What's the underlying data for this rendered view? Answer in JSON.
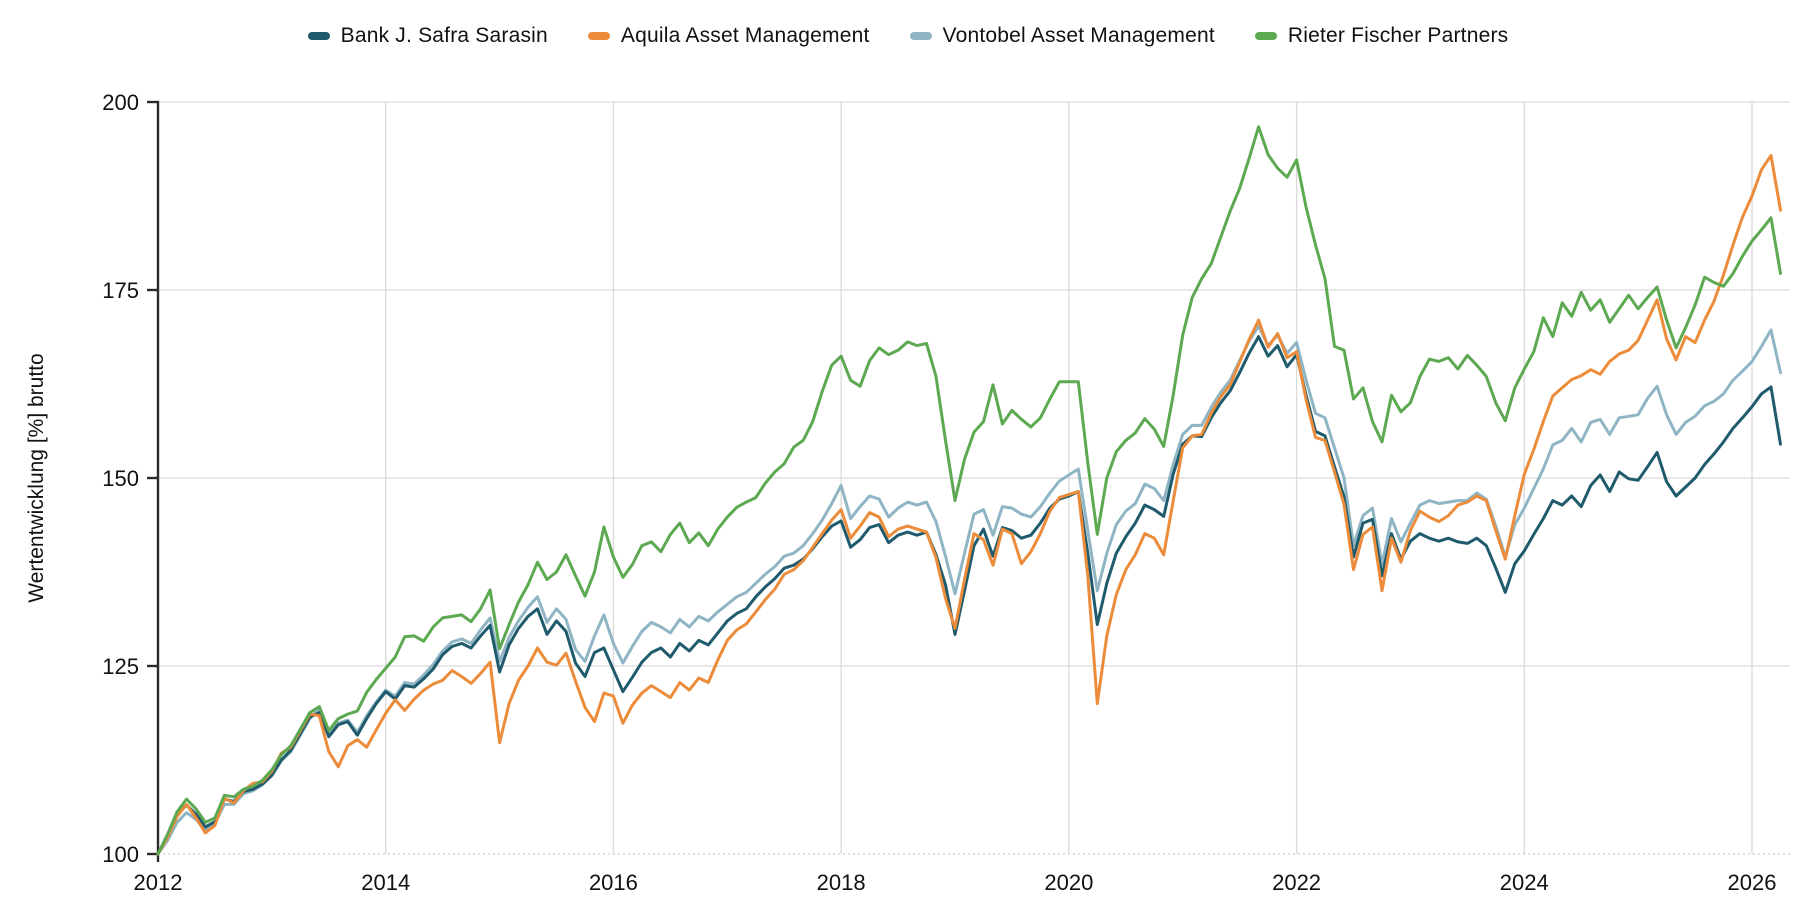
{
  "chart_data": {
    "type": "line",
    "title": "",
    "xlabel": "",
    "ylabel": "Wertentwicklung [%] brutto",
    "x_start_year": 2012,
    "x_points_per_year": 12,
    "x_end_year": 2026.25,
    "ylim": [
      100,
      200
    ],
    "xlim": [
      2012,
      2026.33
    ],
    "y_ticks": [
      100,
      125,
      150,
      175,
      200
    ],
    "x_ticks": [
      2012,
      2014,
      2016,
      2018,
      2020,
      2022,
      2024,
      2026
    ],
    "grid": true,
    "legend_position": "top",
    "colors": {
      "grid": "#d9d9d9",
      "baseline": "#c9c9c9",
      "axis": "#2b2b2b",
      "text": "#111111"
    },
    "series": [
      {
        "name": "Bank J. Safra Sarasin",
        "color": "#1f5b6c",
        "values": [
          100,
          102.5,
          105.3,
          106.5,
          105.3,
          103.6,
          104.3,
          107.3,
          107.0,
          108.3,
          108.6,
          109.3,
          110.5,
          112.5,
          113.8,
          116.0,
          118.2,
          118.8,
          115.6,
          117.2,
          117.6,
          115.8,
          118.0,
          120.0,
          121.6,
          120.6,
          122.4,
          122.2,
          123.3,
          124.6,
          126.5,
          127.6,
          128.0,
          127.4,
          129.0,
          130.4,
          124.2,
          127.8,
          130.0,
          131.6,
          132.6,
          129.2,
          131.0,
          129.6,
          125.4,
          123.6,
          126.8,
          127.4,
          124.5,
          121.6,
          123.5,
          125.5,
          126.8,
          127.4,
          126.2,
          128.0,
          127.0,
          128.4,
          127.8,
          129.4,
          131.0,
          132.0,
          132.6,
          134.2,
          135.5,
          136.6,
          138.0,
          138.4,
          139.2,
          140.6,
          142.2,
          143.6,
          144.3,
          140.8,
          141.8,
          143.4,
          143.8,
          141.4,
          142.4,
          142.8,
          142.4,
          142.8,
          139.8,
          135.8,
          129.2,
          135.0,
          141.0,
          143.2,
          139.6,
          143.4,
          143.0,
          142.0,
          142.4,
          144.0,
          146.0,
          147.2,
          147.6,
          148.2,
          140.0,
          130.5,
          136.0,
          140.0,
          142.2,
          144.0,
          146.4,
          145.8,
          144.9,
          150.5,
          154.5,
          155.6,
          155.5,
          158.0,
          160.0,
          161.6,
          164.0,
          166.6,
          168.8,
          166.2,
          167.6,
          164.8,
          166.4,
          161.0,
          156.2,
          155.6,
          151.5,
          147.5,
          139.5,
          144.0,
          144.5,
          137.0,
          142.6,
          139.2,
          141.6,
          142.6,
          142.0,
          141.6,
          142.0,
          141.5,
          141.3,
          142.0,
          141.0,
          138.0,
          134.8,
          138.6,
          140.3,
          142.5,
          144.6,
          147.0,
          146.4,
          147.6,
          146.2,
          149.0,
          150.4,
          148.2,
          150.8,
          149.9,
          149.7,
          151.5,
          153.4,
          149.5,
          147.6,
          148.8,
          150.0,
          151.8,
          153.2,
          154.8,
          156.6,
          158.0,
          159.5,
          161.2,
          162.1,
          154.5
        ]
      },
      {
        "name": "Aquila Asset Management",
        "color": "#ec8c3b",
        "values": [
          100,
          102.2,
          105.0,
          106.6,
          104.8,
          102.8,
          103.8,
          107.4,
          106.8,
          108.4,
          109.4,
          109.6,
          111.0,
          113.4,
          114.2,
          116.4,
          118.6,
          118.4,
          113.6,
          111.6,
          114.4,
          115.2,
          114.2,
          116.5,
          118.7,
          120.5,
          119.1,
          120.6,
          121.8,
          122.6,
          123.1,
          124.4,
          123.6,
          122.7,
          124.0,
          125.5,
          114.8,
          120.0,
          123.1,
          125.0,
          127.4,
          125.5,
          125.1,
          126.7,
          123.0,
          119.5,
          117.6,
          121.4,
          121.0,
          117.4,
          119.8,
          121.4,
          122.4,
          121.6,
          120.8,
          122.8,
          121.8,
          123.4,
          122.8,
          125.8,
          128.4,
          129.8,
          130.6,
          132.2,
          133.8,
          135.2,
          137.2,
          137.8,
          139.0,
          140.8,
          142.6,
          144.4,
          145.8,
          142.0,
          143.6,
          145.4,
          144.8,
          142.2,
          143.2,
          143.6,
          143.2,
          142.8,
          139.4,
          134.0,
          130.0,
          136.5,
          142.6,
          141.8,
          138.4,
          143.2,
          142.6,
          138.6,
          140.2,
          142.6,
          145.6,
          147.4,
          147.8,
          148.2,
          137.0,
          120.0,
          129.0,
          134.5,
          137.8,
          139.8,
          142.6,
          142.0,
          139.8,
          147.0,
          154.0,
          155.6,
          155.8,
          158.6,
          160.8,
          162.4,
          165.4,
          168.4,
          171.0,
          167.4,
          169.2,
          166.0,
          166.8,
          160.4,
          155.4,
          155.0,
          150.8,
          146.5,
          137.8,
          142.5,
          143.5,
          135.0,
          142.0,
          138.8,
          143.0,
          145.6,
          144.8,
          144.2,
          145.0,
          146.4,
          146.8,
          147.6,
          147.0,
          143.0,
          139.2,
          145.0,
          150.5,
          153.8,
          157.5,
          160.9,
          162.0,
          163.1,
          163.6,
          164.4,
          163.8,
          165.5,
          166.5,
          167.0,
          168.3,
          171.0,
          173.7,
          168.5,
          165.7,
          168.8,
          168.0,
          171.0,
          173.5,
          177.0,
          181.0,
          184.7,
          187.5,
          191.0,
          192.9,
          185.6
        ]
      },
      {
        "name": "Vontobel Asset Management",
        "color": "#8fb5c5",
        "values": [
          100,
          101.8,
          104.2,
          105.5,
          104.6,
          103.2,
          104.0,
          106.6,
          106.6,
          108.0,
          108.4,
          109.2,
          110.4,
          112.4,
          113.6,
          115.8,
          118.0,
          119.4,
          116.0,
          117.4,
          117.8,
          116.2,
          118.4,
          120.2,
          121.8,
          121.0,
          122.8,
          122.6,
          123.8,
          125.2,
          127.0,
          128.2,
          128.6,
          128.0,
          129.8,
          131.4,
          125.6,
          128.8,
          131.0,
          132.8,
          134.2,
          130.8,
          132.6,
          131.2,
          127.2,
          125.6,
          129.0,
          131.8,
          128.0,
          125.4,
          127.6,
          129.6,
          130.8,
          130.2,
          129.4,
          131.2,
          130.2,
          131.6,
          131.0,
          132.2,
          133.2,
          134.2,
          134.8,
          136.0,
          137.2,
          138.2,
          139.6,
          140.0,
          141.0,
          142.6,
          144.4,
          146.6,
          149.0,
          144.6,
          146.2,
          147.6,
          147.2,
          144.8,
          146.0,
          146.8,
          146.4,
          146.8,
          144.2,
          139.6,
          134.6,
          140.0,
          145.2,
          145.8,
          142.4,
          146.2,
          146.0,
          145.2,
          144.8,
          146.2,
          148.0,
          149.6,
          150.4,
          151.2,
          143.0,
          135.0,
          140.0,
          143.8,
          145.6,
          146.6,
          149.2,
          148.6,
          147.0,
          151.8,
          155.8,
          157.0,
          157.0,
          159.4,
          161.4,
          163.0,
          165.6,
          168.2,
          170.2,
          167.6,
          169.0,
          166.6,
          168.0,
          163.0,
          158.6,
          158.0,
          154.0,
          150.0,
          141.0,
          145.0,
          146.0,
          138.5,
          144.6,
          141.5,
          144.0,
          146.4,
          147.0,
          146.6,
          146.8,
          147.0,
          147.0,
          148.0,
          147.2,
          143.6,
          139.5,
          143.8,
          146.0,
          148.6,
          151.2,
          154.4,
          155.0,
          156.6,
          154.8,
          157.4,
          157.8,
          155.8,
          158.0,
          158.2,
          158.4,
          160.6,
          162.2,
          158.4,
          155.8,
          157.4,
          158.2,
          159.6,
          160.2,
          161.2,
          163.0,
          164.2,
          165.5,
          167.5,
          169.7,
          164.0
        ]
      },
      {
        "name": "Rieter Fischer Partners",
        "color": "#5ca951",
        "values": [
          100,
          102.6,
          105.6,
          107.3,
          106.0,
          104.2,
          104.8,
          107.8,
          107.6,
          108.6,
          109.0,
          109.8,
          111.2,
          113.2,
          114.4,
          116.6,
          118.8,
          119.6,
          116.4,
          118.0,
          118.6,
          119.0,
          121.5,
          123.2,
          124.7,
          126.2,
          128.9,
          129.0,
          128.3,
          130.2,
          131.4,
          131.6,
          131.8,
          130.9,
          132.6,
          135.1,
          127.3,
          130.5,
          133.5,
          135.8,
          138.8,
          136.5,
          137.5,
          139.8,
          137.0,
          134.3,
          137.5,
          143.5,
          139.5,
          136.8,
          138.5,
          141.0,
          141.5,
          140.2,
          142.5,
          144.0,
          141.4,
          142.7,
          141.0,
          143.2,
          144.8,
          146.1,
          146.8,
          147.4,
          149.3,
          150.8,
          151.9,
          154.1,
          155.0,
          157.5,
          161.5,
          165.0,
          166.2,
          163.0,
          162.2,
          165.6,
          167.3,
          166.4,
          167.0,
          168.1,
          167.6,
          167.9,
          163.5,
          155.0,
          147.0,
          152.5,
          156.1,
          157.5,
          162.4,
          157.2,
          159.0,
          157.8,
          156.8,
          158.0,
          160.5,
          162.8,
          162.8,
          162.8,
          152.0,
          142.5,
          150.0,
          153.5,
          155.0,
          156.0,
          157.9,
          156.5,
          154.2,
          161.0,
          169.0,
          174.0,
          176.5,
          178.5,
          182.0,
          185.5,
          188.5,
          192.5,
          196.7,
          193.0,
          191.2,
          190.0,
          192.3,
          186.0,
          181.0,
          176.5,
          167.5,
          167.0,
          160.5,
          162.0,
          157.5,
          154.8,
          161.0,
          158.8,
          160.0,
          163.5,
          165.8,
          165.5,
          166.0,
          164.5,
          166.3,
          165.0,
          163.5,
          160.0,
          157.6,
          162.0,
          164.5,
          166.8,
          171.3,
          168.8,
          173.3,
          171.5,
          174.7,
          172.3,
          173.7,
          170.7,
          172.5,
          174.3,
          172.5,
          174.0,
          175.4,
          171.0,
          167.3,
          170.0,
          173.0,
          176.7,
          176.0,
          175.5,
          177.2,
          179.5,
          181.5,
          183.0,
          184.6,
          177.2
        ]
      }
    ]
  }
}
